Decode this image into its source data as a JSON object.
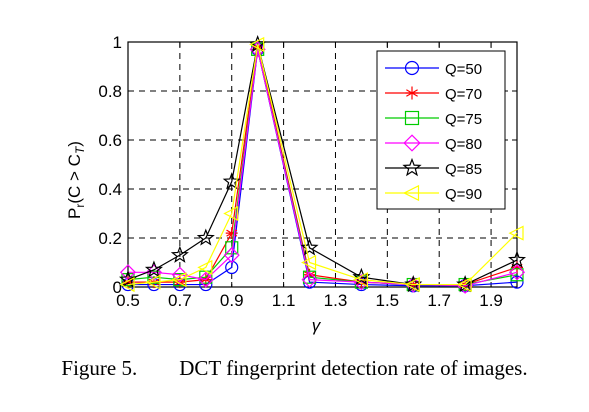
{
  "caption": {
    "figure_label": "Figure 5.",
    "text": "DCT fingerprint detection rate of images."
  },
  "chart_data": {
    "type": "line",
    "xlabel": "γ",
    "ylabel": "P_r(C > C_T)",
    "xlim": [
      0.5,
      2.0
    ],
    "ylim": [
      0,
      1
    ],
    "xticks": [
      "0.5",
      "0.7",
      "0.9",
      "1.1",
      "1.3",
      "1.5",
      "1.7",
      "1.9"
    ],
    "yticks": [
      "0",
      "0.2",
      "0.4",
      "0.6",
      "0.8",
      "1"
    ],
    "grid": true,
    "legend_position": "top-right",
    "x": [
      0.5,
      0.6,
      0.7,
      0.8,
      0.9,
      1.0,
      1.2,
      1.4,
      1.6,
      1.8,
      2.0
    ],
    "series": [
      {
        "name": "Q=50",
        "color": "#0000ff",
        "marker": "circle",
        "values": [
          0.01,
          0.01,
          0.01,
          0.01,
          0.08,
          0.97,
          0.02,
          0.01,
          0.005,
          0.005,
          0.02
        ]
      },
      {
        "name": "Q=70",
        "color": "#ff0000",
        "marker": "asterisk",
        "values": [
          0.02,
          0.02,
          0.02,
          0.03,
          0.22,
          0.98,
          0.05,
          0.02,
          0.01,
          0.01,
          0.08
        ]
      },
      {
        "name": "Q=75",
        "color": "#00cc00",
        "marker": "square",
        "values": [
          0.03,
          0.04,
          0.03,
          0.04,
          0.16,
          0.97,
          0.04,
          0.02,
          0.01,
          0.01,
          0.05
        ]
      },
      {
        "name": "Q=80",
        "color": "#ff00ff",
        "marker": "diamond",
        "values": [
          0.06,
          0.06,
          0.05,
          0.03,
          0.13,
          0.97,
          0.03,
          0.02,
          0.01,
          0.005,
          0.06
        ]
      },
      {
        "name": "Q=85",
        "color": "#000000",
        "marker": "star",
        "values": [
          0.03,
          0.07,
          0.13,
          0.2,
          0.43,
          0.99,
          0.16,
          0.04,
          0.01,
          0.01,
          0.11
        ]
      },
      {
        "name": "Q=90",
        "color": "#ffff00",
        "marker": "triangle-left",
        "values": [
          0.01,
          0.02,
          0.03,
          0.08,
          0.3,
          0.99,
          0.1,
          0.03,
          0.01,
          0.01,
          0.22
        ]
      }
    ]
  }
}
